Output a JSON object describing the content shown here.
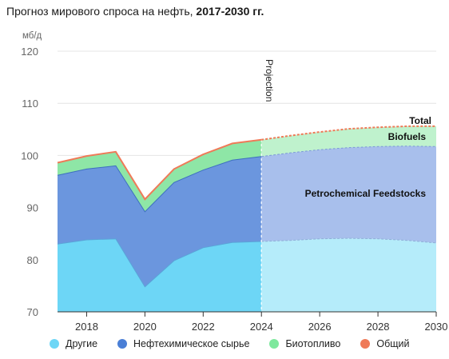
{
  "title": {
    "main": "Прогноз мирового спроса на нефть, ",
    "bold": "2017-2030 гг."
  },
  "colors": {
    "other": "#6dd6f6",
    "petrochem": "#6b96de",
    "biofuels": "#8ee6a6",
    "total": "#ef7a58",
    "other_proj": "#b5ecfa",
    "petrochem_proj": "#a8bfec",
    "biofuels_proj": "#bff2cd"
  },
  "legend": [
    {
      "label": "Другие",
      "color": "#6dd6f6"
    },
    {
      "label": "Нефтехимическое сырье",
      "color": "#4a7fd6"
    },
    {
      "label": "Биотопливо",
      "color": "#7ee89d"
    },
    {
      "label": "Общий",
      "color": "#ef7a58"
    }
  ],
  "chart_data": {
    "type": "area",
    "ylabel": "мб/д",
    "ylim": [
      70,
      120
    ],
    "xlim": [
      2017,
      2030
    ],
    "yticks": [
      "70",
      "80",
      "90",
      "100",
      "110",
      "120"
    ],
    "xticks": [
      "2018",
      "2020",
      "2022",
      "2024",
      "2026",
      "2028",
      "2030"
    ],
    "projection_start": 2024,
    "projection_label": "Projection",
    "annotations": {
      "total": "Total",
      "biofuels": "Biofuels",
      "petrochem": "Petrochemical Feedstocks"
    },
    "x": [
      2017,
      2018,
      2019,
      2020,
      2021,
      2022,
      2023,
      2024,
      2025,
      2026,
      2027,
      2028,
      2029,
      2030
    ],
    "series": [
      {
        "name": "Другие",
        "values": [
          83.0,
          83.8,
          84.0,
          74.8,
          79.8,
          82.3,
          83.3,
          83.5,
          83.7,
          84.0,
          84.1,
          84.0,
          83.7,
          83.2
        ]
      },
      {
        "name": "Нефтехимическое сырье",
        "values": [
          96.2,
          97.4,
          98.0,
          89.2,
          94.8,
          97.2,
          99.1,
          99.8,
          100.5,
          101.1,
          101.5,
          101.7,
          101.8,
          101.7
        ]
      },
      {
        "name": "Биотопливо",
        "values": [
          98.6,
          99.9,
          100.7,
          91.6,
          97.4,
          100.2,
          102.3,
          103.0,
          103.8,
          104.5,
          105.1,
          105.4,
          105.6,
          105.6
        ]
      }
    ],
    "total_values": [
      98.6,
      99.9,
      100.7,
      91.6,
      97.4,
      100.2,
      102.3,
      103.0,
      103.8,
      104.5,
      105.1,
      105.4,
      105.6,
      105.6
    ]
  }
}
